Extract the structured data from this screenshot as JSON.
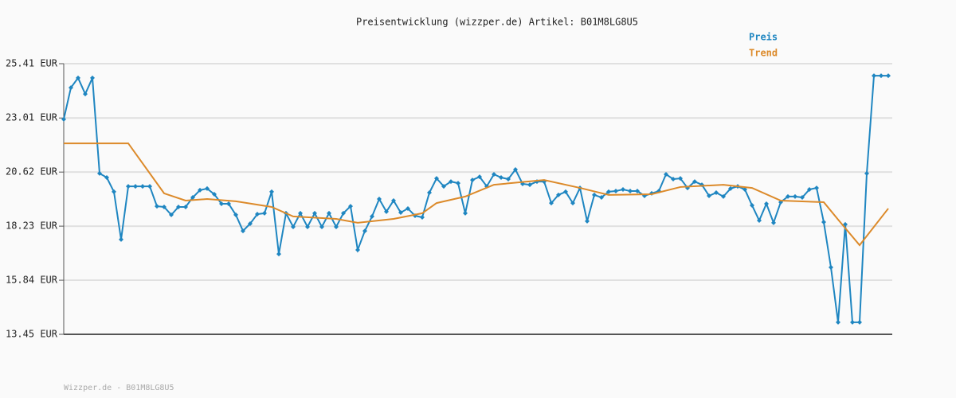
{
  "chart_data": {
    "type": "line",
    "title": "Preisentwicklung (wizzper.de) Artikel: B01M8LG8U5",
    "footer": "Wizzper.de - B01M8LG8U5",
    "ylim": [
      13.45,
      25.41
    ],
    "yticks": [
      {
        "value": 13.45,
        "label": "13.45 EUR"
      },
      {
        "value": 15.84,
        "label": "15.84 EUR"
      },
      {
        "value": 18.23,
        "label": "18.23 EUR"
      },
      {
        "value": 20.62,
        "label": "20.62 EUR"
      },
      {
        "value": 23.01,
        "label": "23.01 EUR"
      },
      {
        "value": 25.41,
        "label": "25.41 EUR"
      }
    ],
    "grid": true,
    "legend": "top-right",
    "series": [
      {
        "name": "Preis",
        "color": "#1f86c1",
        "markers": true,
        "values": [
          22.95,
          24.35,
          24.78,
          24.07,
          24.78,
          20.56,
          20.38,
          19.75,
          17.64,
          19.99,
          19.99,
          19.99,
          19.99,
          19.11,
          19.08,
          18.73,
          19.08,
          19.08,
          19.5,
          19.82,
          19.89,
          19.64,
          19.22,
          19.22,
          18.73,
          18.02,
          18.34,
          18.76,
          18.8,
          19.75,
          17.0,
          18.8,
          18.2,
          18.8,
          18.2,
          18.8,
          18.2,
          18.8,
          18.2,
          18.8,
          19.11,
          17.18,
          18.02,
          18.66,
          19.43,
          18.87,
          19.36,
          18.83,
          19.01,
          18.69,
          18.62,
          19.71,
          20.34,
          19.99,
          20.2,
          20.13,
          18.8,
          20.27,
          20.41,
          19.99,
          20.52,
          20.38,
          20.31,
          20.73,
          20.1,
          20.06,
          20.2,
          20.2,
          19.25,
          19.61,
          19.75,
          19.25,
          19.92,
          18.45,
          19.61,
          19.5,
          19.75,
          19.78,
          19.85,
          19.78,
          19.78,
          19.57,
          19.68,
          19.78,
          20.52,
          20.31,
          20.34,
          19.92,
          20.2,
          20.06,
          19.57,
          19.71,
          19.54,
          19.89,
          19.99,
          19.85,
          19.15,
          18.48,
          19.22,
          18.38,
          19.29,
          19.54,
          19.54,
          19.5,
          19.85,
          19.92,
          18.41,
          16.41,
          13.98,
          18.31,
          13.98,
          13.98,
          20.56,
          24.88,
          24.88,
          24.88
        ]
      },
      {
        "name": "Trend",
        "color": "#dc8a2a",
        "markers": false,
        "x": [
          0,
          9,
          14,
          17,
          20,
          24,
          29,
          32,
          38,
          41,
          46,
          50,
          52,
          56,
          60,
          67,
          72,
          76,
          82,
          86,
          92,
          96,
          100,
          106,
          108,
          111,
          115
        ],
        "values": [
          21.89,
          21.89,
          19.68,
          19.36,
          19.43,
          19.33,
          19.08,
          18.66,
          18.55,
          18.38,
          18.55,
          18.8,
          19.25,
          19.54,
          20.06,
          20.27,
          19.92,
          19.61,
          19.64,
          19.96,
          20.06,
          19.92,
          19.36,
          19.29,
          18.52,
          17.39,
          19.01
        ]
      }
    ]
  }
}
